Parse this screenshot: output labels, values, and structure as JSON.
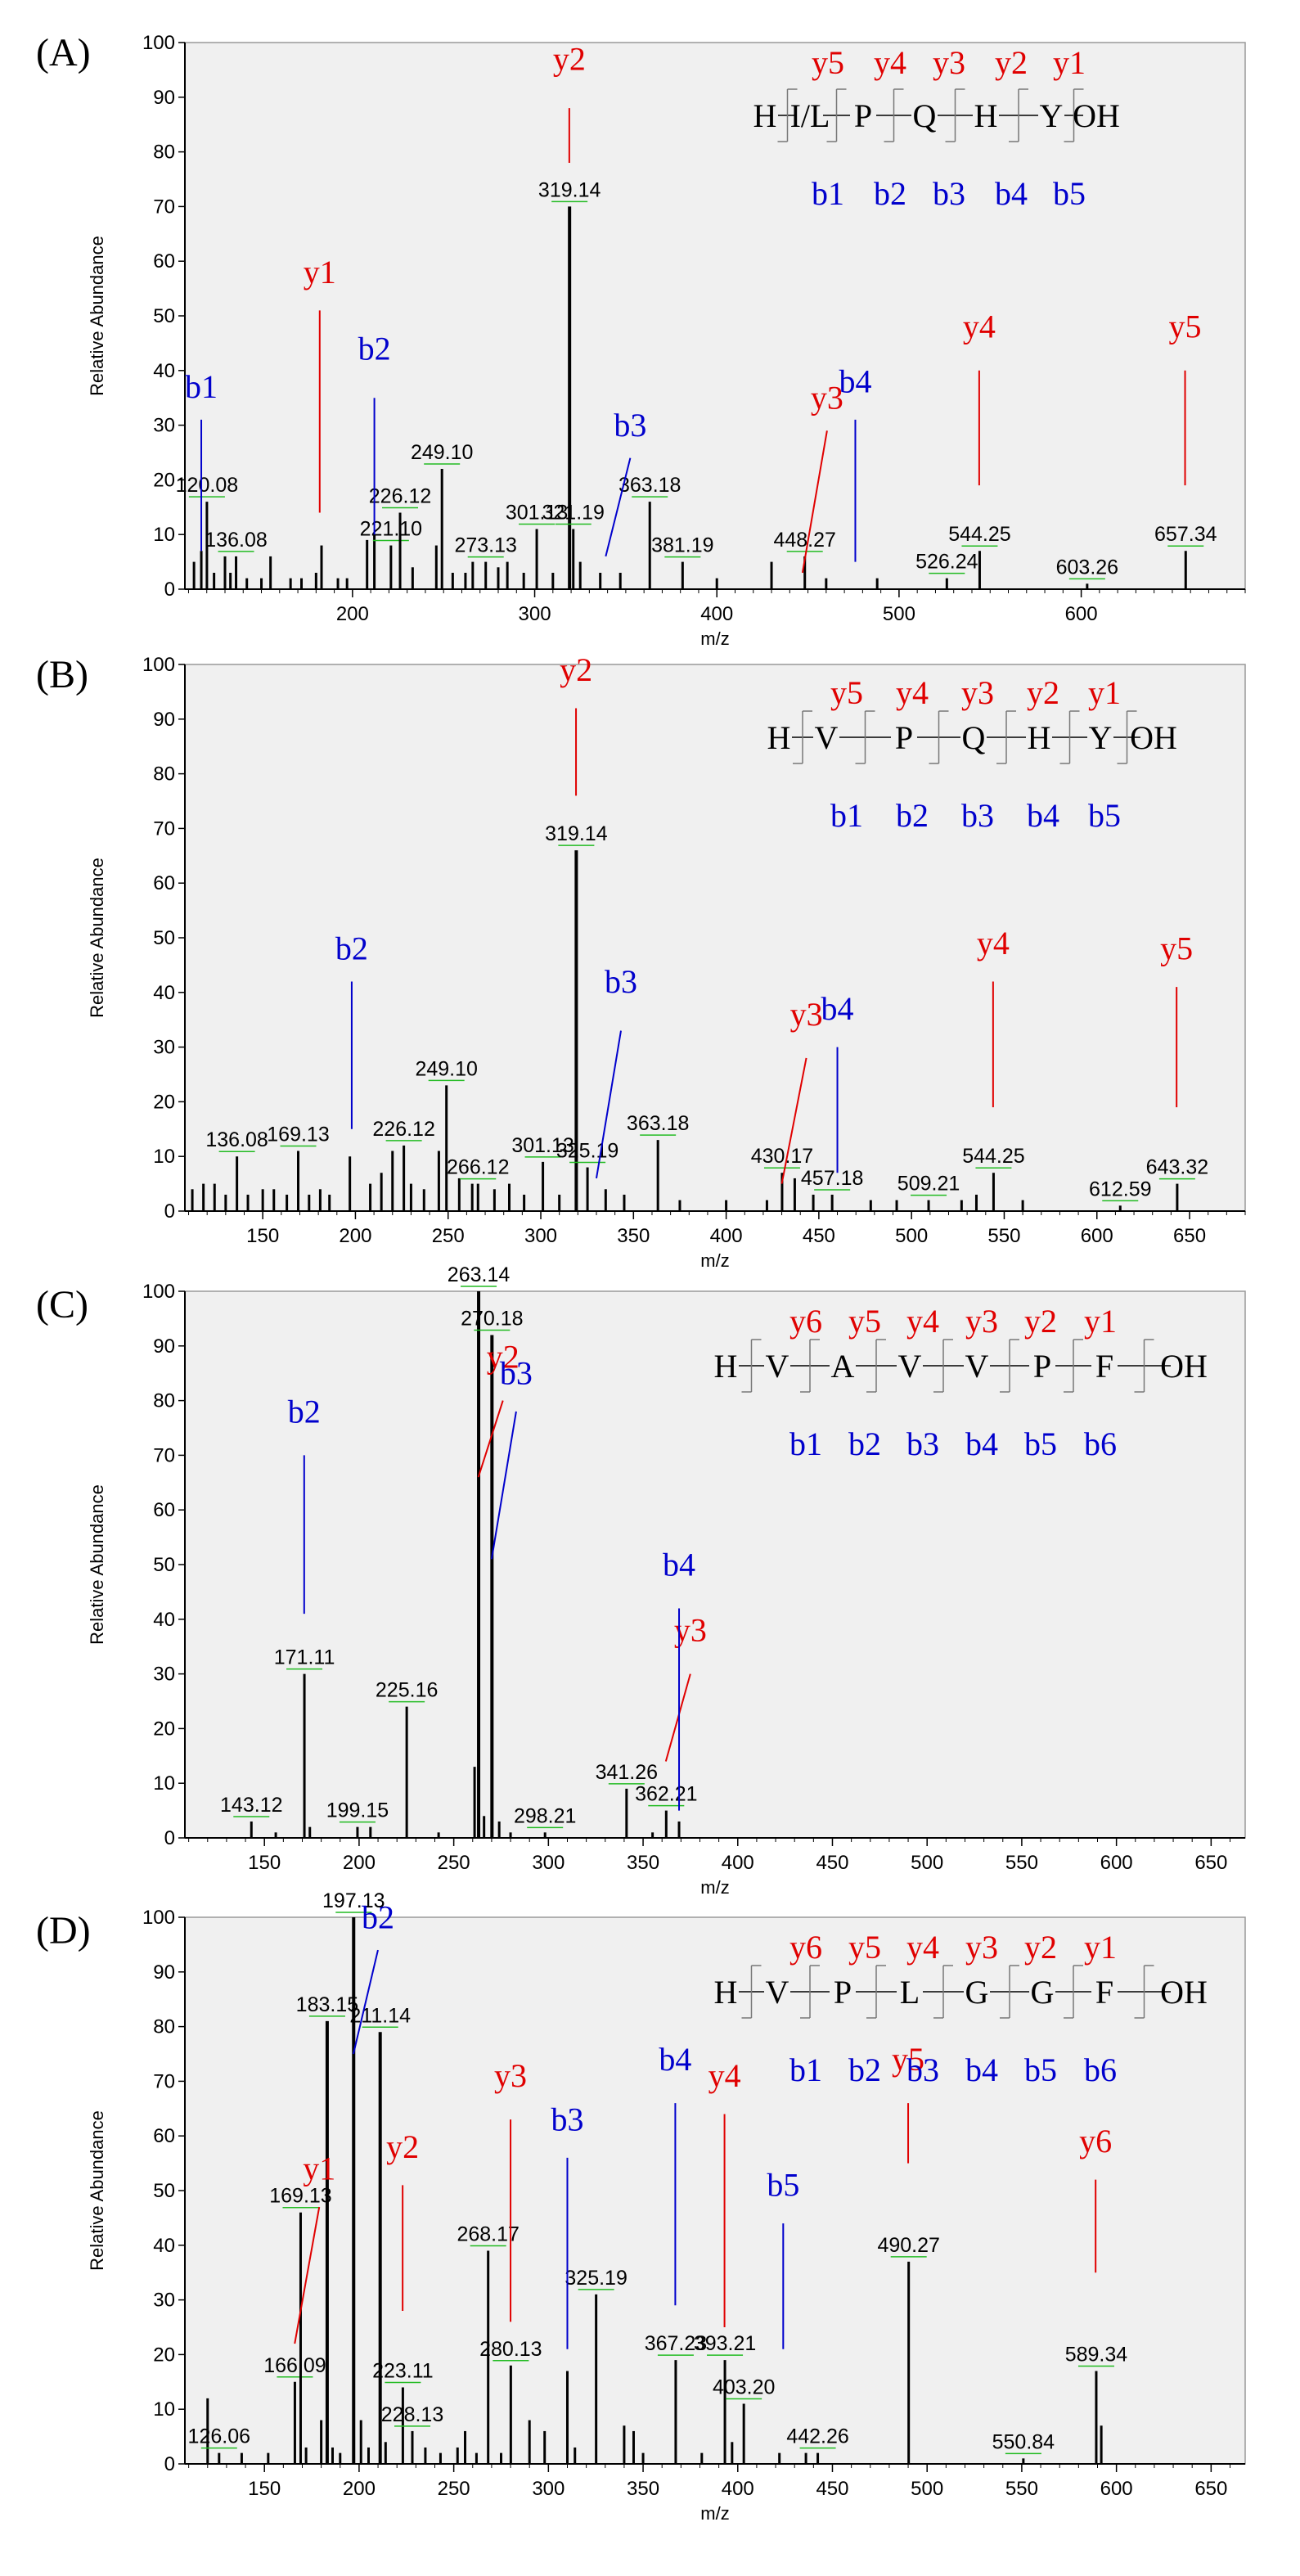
{
  "chart_data": [
    {
      "type": "bar",
      "panel": "(A)",
      "xlabel": "m/z",
      "ylabel": "Relative Abundance",
      "xlim": [
        108,
        690
      ],
      "ylim": [
        0,
        100
      ],
      "xticks": [
        200,
        300,
        400,
        500,
        600
      ],
      "yticks": [
        0,
        10,
        20,
        30,
        40,
        50,
        60,
        70,
        80,
        90,
        100
      ],
      "peaks": [
        {
          "mz": 113,
          "y": 5
        },
        {
          "mz": 117,
          "y": 7
        },
        {
          "mz": 120.08,
          "y": 16,
          "label": "120.08"
        },
        {
          "mz": 124,
          "y": 3
        },
        {
          "mz": 130,
          "y": 6
        },
        {
          "mz": 133,
          "y": 3
        },
        {
          "mz": 136.08,
          "y": 6,
          "label": "136.08"
        },
        {
          "mz": 142,
          "y": 2
        },
        {
          "mz": 150,
          "y": 2
        },
        {
          "mz": 155,
          "y": 6
        },
        {
          "mz": 166,
          "y": 2
        },
        {
          "mz": 172,
          "y": 2
        },
        {
          "mz": 180,
          "y": 3
        },
        {
          "mz": 183,
          "y": 8
        },
        {
          "mz": 192,
          "y": 2
        },
        {
          "mz": 197,
          "y": 2
        },
        {
          "mz": 208,
          "y": 9
        },
        {
          "mz": 212,
          "y": 10
        },
        {
          "mz": 221.1,
          "y": 8,
          "label": "221.10"
        },
        {
          "mz": 226.12,
          "y": 14,
          "label": "226.12"
        },
        {
          "mz": 233,
          "y": 4
        },
        {
          "mz": 246,
          "y": 8
        },
        {
          "mz": 249.1,
          "y": 22,
          "label": "249.10"
        },
        {
          "mz": 255,
          "y": 3
        },
        {
          "mz": 262,
          "y": 3
        },
        {
          "mz": 266,
          "y": 5
        },
        {
          "mz": 273.13,
          "y": 5,
          "label": "273.13"
        },
        {
          "mz": 280,
          "y": 4
        },
        {
          "mz": 285,
          "y": 5
        },
        {
          "mz": 294,
          "y": 3
        },
        {
          "mz": 301.13,
          "y": 11,
          "label": "301.13"
        },
        {
          "mz": 310,
          "y": 3
        },
        {
          "mz": 319.14,
          "y": 70,
          "label": "319.14"
        },
        {
          "mz": 321.19,
          "y": 11,
          "label": "321.19"
        },
        {
          "mz": 325,
          "y": 5
        },
        {
          "mz": 336,
          "y": 3
        },
        {
          "mz": 347,
          "y": 3
        },
        {
          "mz": 363.18,
          "y": 16,
          "label": "363.18"
        },
        {
          "mz": 381.19,
          "y": 5,
          "label": "381.19"
        },
        {
          "mz": 400,
          "y": 2
        },
        {
          "mz": 430,
          "y": 5
        },
        {
          "mz": 448.27,
          "y": 6,
          "label": "448.27"
        },
        {
          "mz": 460,
          "y": 2
        },
        {
          "mz": 488,
          "y": 2
        },
        {
          "mz": 526.24,
          "y": 2,
          "label": "526.24"
        },
        {
          "mz": 544.25,
          "y": 7,
          "label": "544.25"
        },
        {
          "mz": 603.26,
          "y": 1,
          "label": "603.26"
        },
        {
          "mz": 657.34,
          "y": 7,
          "label": "657.34"
        }
      ],
      "ion_annotations": [
        {
          "label": "b1",
          "color": "blue",
          "mz": 117
        },
        {
          "label": "y1",
          "color": "red",
          "mz": 182
        },
        {
          "label": "b2",
          "color": "blue",
          "mz": 212
        },
        {
          "label": "y2",
          "color": "red",
          "mz": 319
        },
        {
          "label": "b3",
          "color": "blue",
          "mz": 339
        },
        {
          "label": "y3",
          "color": "red",
          "mz": 447
        },
        {
          "label": "b4",
          "color": "blue",
          "mz": 476
        },
        {
          "label": "y4",
          "color": "red",
          "mz": 544
        },
        {
          "label": "y5",
          "color": "red",
          "mz": 657
        }
      ],
      "sequence": {
        "residues": [
          "H",
          "I/L",
          "P",
          "Q",
          "H",
          "Y",
          "OH"
        ],
        "y_ions": [
          "y5",
          "y4",
          "y3",
          "y2",
          "y1"
        ],
        "b_ions": [
          "b1",
          "b2",
          "b3",
          "b4",
          "b5"
        ]
      }
    },
    {
      "type": "bar",
      "panel": "(B)",
      "xlabel": "m/z",
      "ylabel": "Relative Abundance",
      "xlim": [
        108,
        680
      ],
      "ylim": [
        0,
        100
      ],
      "xticks": [
        150,
        200,
        250,
        300,
        350,
        400,
        450,
        500,
        550,
        600,
        650
      ],
      "yticks": [
        0,
        10,
        20,
        30,
        40,
        50,
        60,
        70,
        80,
        90,
        100
      ],
      "peaks": [
        {
          "mz": 112,
          "y": 4
        },
        {
          "mz": 118,
          "y": 5
        },
        {
          "mz": 124,
          "y": 5
        },
        {
          "mz": 130,
          "y": 3
        },
        {
          "mz": 136.08,
          "y": 10,
          "label": "136.08"
        },
        {
          "mz": 142,
          "y": 3
        },
        {
          "mz": 150,
          "y": 4
        },
        {
          "mz": 156,
          "y": 4
        },
        {
          "mz": 163,
          "y": 3
        },
        {
          "mz": 169.13,
          "y": 11,
          "label": "169.13"
        },
        {
          "mz": 175,
          "y": 3
        },
        {
          "mz": 181,
          "y": 4
        },
        {
          "mz": 186,
          "y": 3
        },
        {
          "mz": 197,
          "y": 10
        },
        {
          "mz": 208,
          "y": 5
        },
        {
          "mz": 214,
          "y": 7
        },
        {
          "mz": 220,
          "y": 11
        },
        {
          "mz": 226.12,
          "y": 12,
          "label": "226.12"
        },
        {
          "mz": 230,
          "y": 5
        },
        {
          "mz": 237,
          "y": 4
        },
        {
          "mz": 245,
          "y": 11
        },
        {
          "mz": 249.1,
          "y": 23,
          "label": "249.10"
        },
        {
          "mz": 256,
          "y": 6
        },
        {
          "mz": 263,
          "y": 5
        },
        {
          "mz": 266.12,
          "y": 5,
          "label": "266.12"
        },
        {
          "mz": 275,
          "y": 4
        },
        {
          "mz": 283,
          "y": 5
        },
        {
          "mz": 291,
          "y": 3
        },
        {
          "mz": 301.13,
          "y": 9,
          "label": "301.13"
        },
        {
          "mz": 310,
          "y": 3
        },
        {
          "mz": 319.14,
          "y": 66,
          "label": "319.14"
        },
        {
          "mz": 325.19,
          "y": 8,
          "label": "325.19"
        },
        {
          "mz": 335,
          "y": 4
        },
        {
          "mz": 345,
          "y": 3
        },
        {
          "mz": 363.18,
          "y": 13,
          "label": "363.18"
        },
        {
          "mz": 375,
          "y": 2
        },
        {
          "mz": 400,
          "y": 2
        },
        {
          "mz": 422,
          "y": 2
        },
        {
          "mz": 430.17,
          "y": 7,
          "label": "430.17"
        },
        {
          "mz": 437,
          "y": 6
        },
        {
          "mz": 447,
          "y": 3
        },
        {
          "mz": 457.18,
          "y": 3,
          "label": "457.18"
        },
        {
          "mz": 478,
          "y": 2
        },
        {
          "mz": 492,
          "y": 2
        },
        {
          "mz": 509.21,
          "y": 2,
          "label": "509.21"
        },
        {
          "mz": 527,
          "y": 2
        },
        {
          "mz": 535,
          "y": 3
        },
        {
          "mz": 544.25,
          "y": 7,
          "label": "544.25"
        },
        {
          "mz": 560,
          "y": 2
        },
        {
          "mz": 612.59,
          "y": 1,
          "label": "612.59"
        },
        {
          "mz": 643.32,
          "y": 5,
          "label": "643.32"
        }
      ],
      "ion_annotations": [
        {
          "label": "b2",
          "color": "blue",
          "mz": 198
        },
        {
          "label": "y2",
          "color": "red",
          "mz": 319
        },
        {
          "label": "b3",
          "color": "blue",
          "mz": 330
        },
        {
          "label": "y3",
          "color": "red",
          "mz": 430
        },
        {
          "label": "b4",
          "color": "blue",
          "mz": 460
        },
        {
          "label": "y4",
          "color": "red",
          "mz": 544
        },
        {
          "label": "y5",
          "color": "red",
          "mz": 643
        }
      ],
      "sequence": {
        "residues": [
          "H",
          "V",
          "P",
          "Q",
          "H",
          "Y",
          "OH"
        ],
        "y_ions": [
          "y5",
          "y4",
          "y3",
          "y2",
          "y1"
        ],
        "b_ions": [
          "b1",
          "b2",
          "b3",
          "b4",
          "b5"
        ]
      }
    },
    {
      "type": "bar",
      "panel": "(C)",
      "xlabel": "m/z",
      "ylabel": "Relative Abundance",
      "xlim": [
        108,
        668
      ],
      "ylim": [
        0,
        100
      ],
      "xticks": [
        150,
        200,
        250,
        300,
        350,
        400,
        450,
        500,
        550,
        600,
        650
      ],
      "yticks": [
        0,
        10,
        20,
        30,
        40,
        50,
        60,
        70,
        80,
        90,
        100
      ],
      "peaks": [
        {
          "mz": 143.12,
          "y": 3,
          "label": "143.12"
        },
        {
          "mz": 156,
          "y": 1
        },
        {
          "mz": 171.11,
          "y": 30,
          "label": "171.11"
        },
        {
          "mz": 174,
          "y": 2
        },
        {
          "mz": 199.15,
          "y": 2,
          "label": "199.15"
        },
        {
          "mz": 206,
          "y": 2
        },
        {
          "mz": 225.16,
          "y": 24,
          "label": "225.16"
        },
        {
          "mz": 242,
          "y": 1
        },
        {
          "mz": 261,
          "y": 13
        },
        {
          "mz": 263.14,
          "y": 100,
          "label": "263.14"
        },
        {
          "mz": 266,
          "y": 4
        },
        {
          "mz": 270.18,
          "y": 92,
          "label": "270.18"
        },
        {
          "mz": 274,
          "y": 3
        },
        {
          "mz": 280,
          "y": 1
        },
        {
          "mz": 298.21,
          "y": 1,
          "label": "298.21"
        },
        {
          "mz": 341.26,
          "y": 9,
          "label": "341.26"
        },
        {
          "mz": 355,
          "y": 1
        },
        {
          "mz": 362.21,
          "y": 5,
          "label": "362.21"
        },
        {
          "mz": 369,
          "y": 3
        }
      ],
      "ion_annotations": [
        {
          "label": "b2",
          "color": "blue",
          "mz": 171
        },
        {
          "label": "y2",
          "color": "red",
          "mz": 263
        },
        {
          "label": "b3",
          "color": "blue",
          "mz": 270
        },
        {
          "label": "y3",
          "color": "red",
          "mz": 362
        },
        {
          "label": "b4",
          "color": "blue",
          "mz": 369
        }
      ],
      "sequence": {
        "residues": [
          "H",
          "V",
          "A",
          "V",
          "V",
          "P",
          "F",
          "OH"
        ],
        "y_ions": [
          "y6",
          "y5",
          "y4",
          "y3",
          "y2",
          "y1"
        ],
        "b_ions": [
          "b1",
          "b2",
          "b3",
          "b4",
          "b5",
          "b6"
        ]
      }
    },
    {
      "type": "bar",
      "panel": "(D)",
      "xlabel": "m/z",
      "ylabel": "Relative Abundance",
      "xlim": [
        108,
        668
      ],
      "ylim": [
        0,
        100
      ],
      "xticks": [
        150,
        200,
        250,
        300,
        350,
        400,
        450,
        500,
        550,
        600,
        650
      ],
      "yticks": [
        0,
        10,
        20,
        30,
        40,
        50,
        60,
        70,
        80,
        90,
        100
      ],
      "peaks": [
        {
          "mz": 120,
          "y": 12
        },
        {
          "mz": 126.06,
          "y": 2,
          "label": "126.06"
        },
        {
          "mz": 138,
          "y": 2
        },
        {
          "mz": 152,
          "y": 2
        },
        {
          "mz": 166.09,
          "y": 15,
          "label": "166.09"
        },
        {
          "mz": 169.13,
          "y": 46,
          "label": "169.13"
        },
        {
          "mz": 172,
          "y": 3
        },
        {
          "mz": 180,
          "y": 8
        },
        {
          "mz": 183.15,
          "y": 81,
          "label": "183.15"
        },
        {
          "mz": 186,
          "y": 3
        },
        {
          "mz": 190,
          "y": 2
        },
        {
          "mz": 197.13,
          "y": 100,
          "label": "197.13"
        },
        {
          "mz": 201,
          "y": 8
        },
        {
          "mz": 205,
          "y": 3
        },
        {
          "mz": 211.14,
          "y": 79,
          "label": "211.14"
        },
        {
          "mz": 214,
          "y": 4
        },
        {
          "mz": 223.11,
          "y": 14,
          "label": "223.11"
        },
        {
          "mz": 228.13,
          "y": 6,
          "label": "228.13"
        },
        {
          "mz": 235,
          "y": 3
        },
        {
          "mz": 243,
          "y": 2
        },
        {
          "mz": 252,
          "y": 3
        },
        {
          "mz": 256,
          "y": 6
        },
        {
          "mz": 262,
          "y": 2
        },
        {
          "mz": 268.17,
          "y": 39,
          "label": "268.17"
        },
        {
          "mz": 275,
          "y": 2
        },
        {
          "mz": 280.13,
          "y": 18,
          "label": "280.13"
        },
        {
          "mz": 290,
          "y": 8
        },
        {
          "mz": 298,
          "y": 6
        },
        {
          "mz": 310,
          "y": 17
        },
        {
          "mz": 314,
          "y": 3
        },
        {
          "mz": 325.19,
          "y": 31,
          "label": "325.19"
        },
        {
          "mz": 340,
          "y": 7
        },
        {
          "mz": 345,
          "y": 6
        },
        {
          "mz": 350,
          "y": 2
        },
        {
          "mz": 367.23,
          "y": 19,
          "label": "367.23"
        },
        {
          "mz": 381,
          "y": 2
        },
        {
          "mz": 393.21,
          "y": 19,
          "label": "393.21"
        },
        {
          "mz": 397,
          "y": 4
        },
        {
          "mz": 403.2,
          "y": 11,
          "label": "403.20"
        },
        {
          "mz": 422,
          "y": 2
        },
        {
          "mz": 436,
          "y": 2
        },
        {
          "mz": 442.26,
          "y": 2,
          "label": "442.26"
        },
        {
          "mz": 490.27,
          "y": 37,
          "label": "490.27"
        },
        {
          "mz": 550.84,
          "y": 1,
          "label": "550.84"
        },
        {
          "mz": 589.34,
          "y": 17,
          "label": "589.34"
        },
        {
          "mz": 592,
          "y": 7
        }
      ],
      "ion_annotations": [
        {
          "label": "y1",
          "color": "red",
          "mz": 166
        },
        {
          "label": "b2",
          "color": "blue",
          "mz": 197
        },
        {
          "label": "y2",
          "color": "red",
          "mz": 223
        },
        {
          "label": "y3",
          "color": "red",
          "mz": 280
        },
        {
          "label": "b3",
          "color": "blue",
          "mz": 310
        },
        {
          "label": "b4",
          "color": "blue",
          "mz": 367
        },
        {
          "label": "y4",
          "color": "red",
          "mz": 393
        },
        {
          "label": "b5",
          "color": "blue",
          "mz": 424
        },
        {
          "label": "y5",
          "color": "red",
          "mz": 490
        },
        {
          "label": "y6",
          "color": "red",
          "mz": 589
        }
      ],
      "sequence": {
        "residues": [
          "H",
          "V",
          "P",
          "L",
          "G",
          "G",
          "F",
          "OH"
        ],
        "y_ions": [
          "y6",
          "y5",
          "y4",
          "y3",
          "y2",
          "y1"
        ],
        "b_ions": [
          "b1",
          "b2",
          "b3",
          "b4",
          "b5",
          "b6"
        ]
      }
    }
  ],
  "colors": {
    "y_ion": "#e00000",
    "b_ion": "#0000cc",
    "label_leader": "#22bb22",
    "plot_bg": "#f0f0f0"
  }
}
